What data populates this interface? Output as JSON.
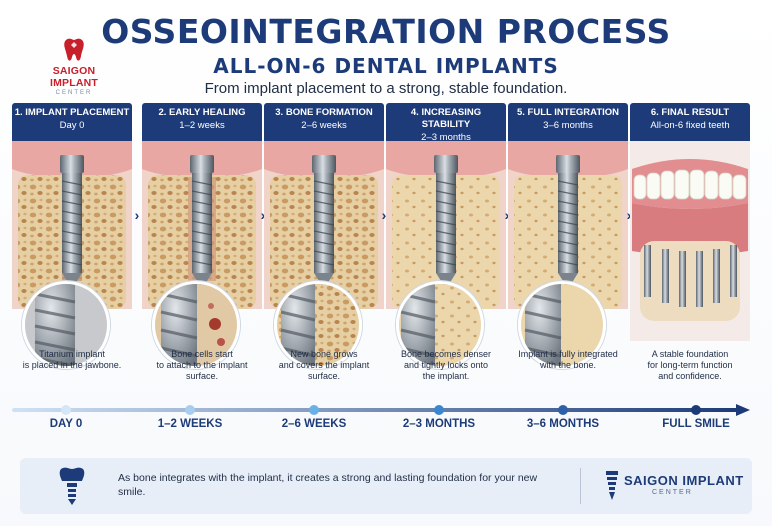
{
  "logo": {
    "name": "SAIGON IMPLANT",
    "sub": "CENTER"
  },
  "header": {
    "title": "OSSEOINTEGRATION PROCESS",
    "subtitle": "ALL-ON-6 DENTAL IMPLANTS",
    "tagline": "From implant placement to a strong, stable foundation."
  },
  "stages": [
    {
      "step": "1. IMPLANT PLACEMENT",
      "time": "Day 0",
      "desc_lines": [
        "Titanium implant",
        "is placed in the jawbone."
      ]
    },
    {
      "step": "2. EARLY HEALING",
      "time": "1–2 weeks",
      "desc_lines": [
        "Bone cells start",
        "to attach to the implant",
        "surface."
      ]
    },
    {
      "step": "3. BONE FORMATION",
      "time": "2–6 weeks",
      "desc_lines": [
        "New bone grows",
        "and covers the implant",
        "surface."
      ]
    },
    {
      "step": "4. INCREASING STABILITY",
      "time": "2–3 months",
      "desc_lines": [
        "Bone becomes denser",
        "and tightly locks onto",
        "the implant."
      ]
    },
    {
      "step": "5. FULL INTEGRATION",
      "time": "3–6 months",
      "desc_lines": [
        "Implant is fully integrated",
        "with the bone."
      ]
    },
    {
      "step": "6. FINAL RESULT",
      "time": "All-on-6 fixed teeth",
      "desc_lines": [
        "A stable foundation",
        "for long-term function",
        "and confidence."
      ]
    }
  ],
  "timeline": [
    "DAY 0",
    "1–2 WEEKS",
    "2–6 WEEKS",
    "2–3 MONTHS",
    "3–6 MONTHS",
    "FULL SMILE"
  ],
  "footer": {
    "text": "As bone integrates with the implant, it creates a strong and lasting foundation for your new smile.",
    "brand": "SAIGON IMPLANT",
    "brand_sub": "CENTER"
  },
  "icons": {
    "logo": "tooth-logo-icon",
    "arrow": "chevron-right-icon",
    "footer": "implant-icon"
  },
  "colors": {
    "navy": "#1d3b78",
    "brand_red": "#c8202a",
    "gum": "#e9a7a4",
    "bone": "#e6cfa2",
    "panel": "#e7eef8"
  }
}
